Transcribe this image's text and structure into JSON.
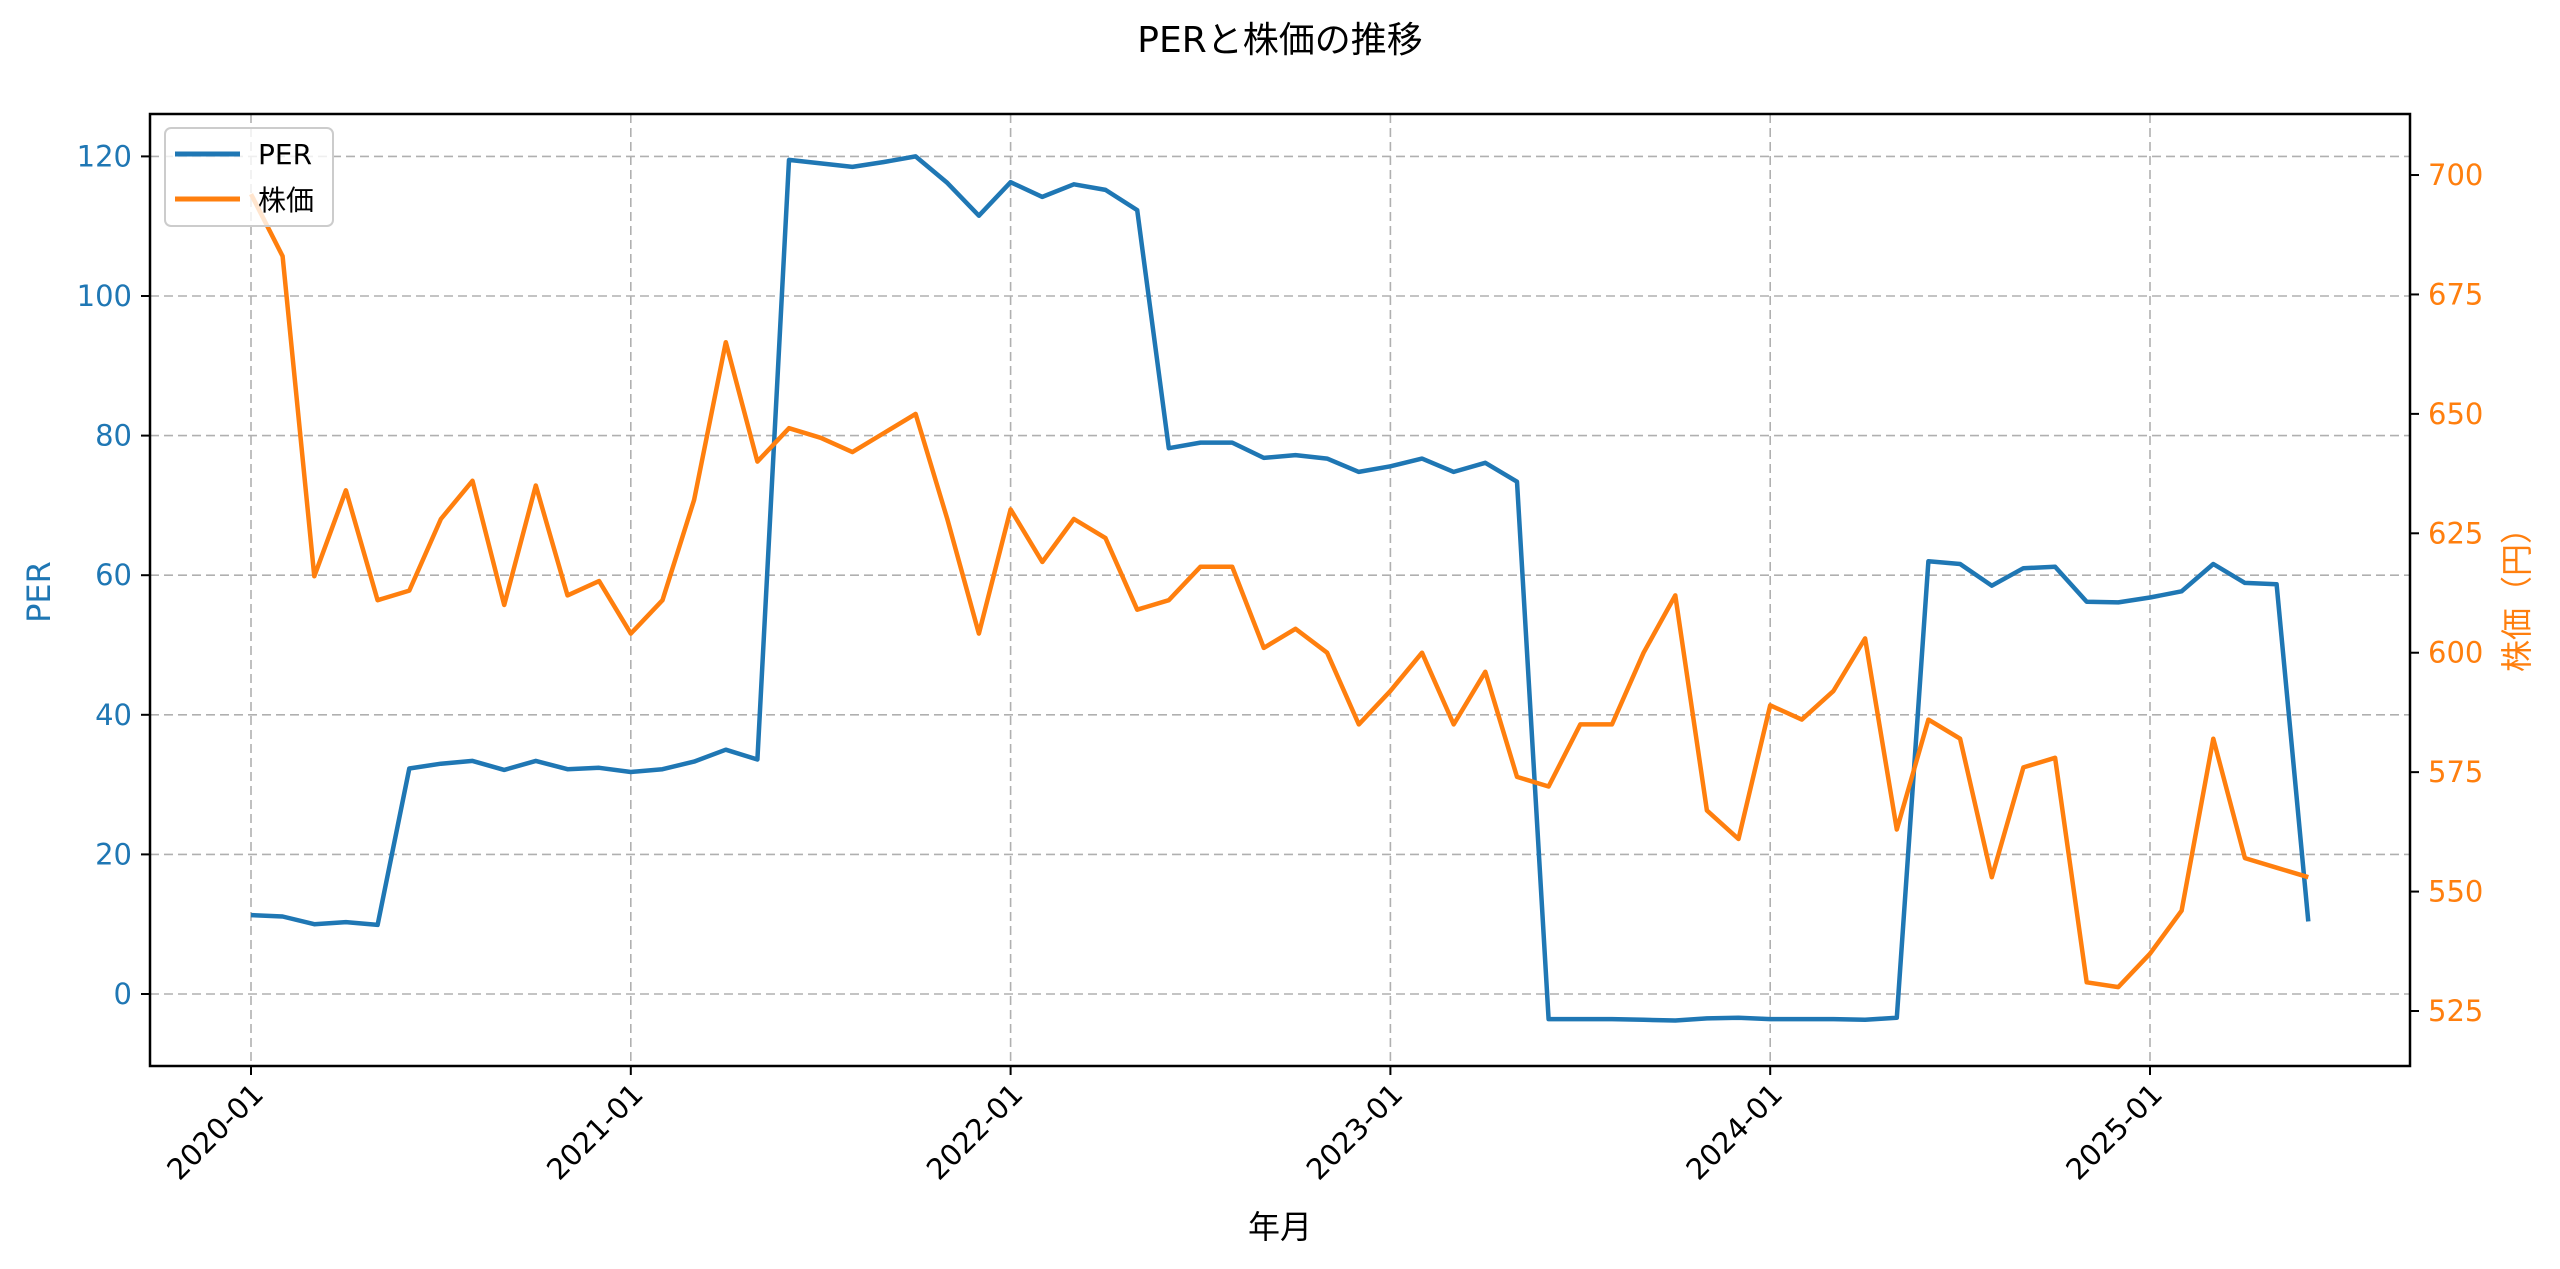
{
  "chart_data": {
    "type": "line",
    "title": "PERと株価の推移",
    "xlabel": "年月",
    "ylabel": "PER",
    "ylabel_right": "株価（円）",
    "x_ticks": [
      "2020-01",
      "2021-01",
      "2022-01",
      "2023-01",
      "2024-01",
      "2025-01"
    ],
    "y_ticks_left": [
      0,
      20,
      40,
      60,
      80,
      100,
      120
    ],
    "y_ticks_right": [
      525,
      550,
      575,
      600,
      625,
      650,
      675,
      700
    ],
    "ylim_left": [
      -10,
      126
    ],
    "ylim_right": [
      513,
      711
    ],
    "grid": true,
    "legend_position": "upper left",
    "legend": [
      "PER",
      "株価"
    ],
    "x": [
      "2020-01",
      "2020-02",
      "2020-03",
      "2020-04",
      "2020-05",
      "2020-06",
      "2020-07",
      "2020-08",
      "2020-09",
      "2020-10",
      "2020-11",
      "2020-12",
      "2021-01",
      "2021-02",
      "2021-03",
      "2021-04",
      "2021-05",
      "2021-06",
      "2021-07",
      "2021-08",
      "2021-09",
      "2021-10",
      "2021-11",
      "2021-12",
      "2022-01",
      "2022-02",
      "2022-03",
      "2022-04",
      "2022-05",
      "2022-06",
      "2022-07",
      "2022-08",
      "2022-09",
      "2022-10",
      "2022-11",
      "2022-12",
      "2023-01",
      "2023-02",
      "2023-03",
      "2023-04",
      "2023-05",
      "2023-06",
      "2023-07",
      "2023-08",
      "2023-09",
      "2023-10",
      "2023-11",
      "2023-12",
      "2024-01",
      "2024-02",
      "2024-03",
      "2024-04",
      "2024-05",
      "2024-06",
      "2024-07",
      "2024-08",
      "2024-09",
      "2024-10",
      "2024-11",
      "2024-12",
      "2025-01",
      "2025-02",
      "2025-03",
      "2025-04",
      "2025-05",
      "2025-06"
    ],
    "series": [
      {
        "name": "PER",
        "axis": "left",
        "color": "#1f77b4",
        "values": [
          11.3,
          11.1,
          10.0,
          10.3,
          9.9,
          32.3,
          33.0,
          33.4,
          32.1,
          33.4,
          32.2,
          32.4,
          31.8,
          32.2,
          33.3,
          35.0,
          33.6,
          119.5,
          119.0,
          118.5,
          119.2,
          120.0,
          116.2,
          111.5,
          116.3,
          114.2,
          116.0,
          115.2,
          112.3,
          78.2,
          79.0,
          79.0,
          76.8,
          77.2,
          76.7,
          74.8,
          75.6,
          76.7,
          74.8,
          76.1,
          73.4,
          -3.6,
          -3.6,
          -3.6,
          -3.7,
          -3.8,
          -3.5,
          -3.4,
          -3.6,
          -3.6,
          -3.6,
          -3.7,
          -3.4,
          62.0,
          61.6,
          58.5,
          61.0,
          61.2,
          56.2,
          56.1,
          56.8,
          57.7,
          61.6,
          58.9,
          58.7,
          10.4
        ]
      },
      {
        "name": "株価",
        "axis": "right",
        "color": "#ff7f0e",
        "values": [
          696,
          683,
          616,
          634,
          611,
          613,
          628,
          636,
          610,
          635,
          612,
          615,
          604,
          611,
          632,
          665,
          640,
          647,
          645,
          642,
          646,
          650,
          628,
          604,
          630,
          619,
          628,
          624,
          609,
          611,
          618,
          618,
          601,
          605,
          600,
          585,
          592,
          600,
          585,
          596,
          574,
          572,
          585,
          585,
          600,
          612,
          567,
          561,
          589,
          586,
          592,
          603,
          563,
          586,
          582,
          553,
          576,
          578,
          531,
          530,
          537,
          546,
          582,
          557,
          555,
          553
        ]
      }
    ]
  },
  "colors": {
    "per": "#1f77b4",
    "price": "#ff7f0e",
    "grid": "#b0b0b0",
    "axis": "#000000"
  }
}
